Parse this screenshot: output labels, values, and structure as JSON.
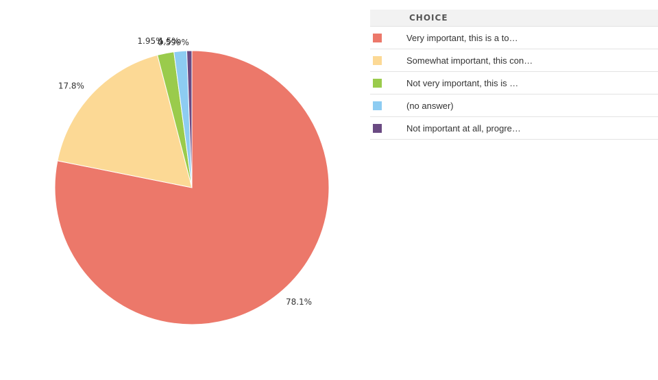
{
  "chart_data": {
    "type": "pie",
    "legend_header": "CHOICE",
    "legend_position": "right",
    "slices": [
      {
        "label": "Very important, this is a to…",
        "value": 78.1,
        "value_label": "78.1%",
        "color": "#EC786A"
      },
      {
        "label": "Somewhat important, this con…",
        "value": 17.8,
        "value_label": "17.8%",
        "color": "#FCD995"
      },
      {
        "label": "Not very important, this is …",
        "value": 1.95,
        "value_label": "1.95%",
        "color": "#9ACB4C"
      },
      {
        "label": "(no answer)",
        "value": 1.5,
        "value_label": "1.5%",
        "color": "#8DCCF2"
      },
      {
        "label": "Not important at all, progre…",
        "value": 0.599,
        "value_label": "0.599%",
        "color": "#6A4A82"
      }
    ]
  }
}
